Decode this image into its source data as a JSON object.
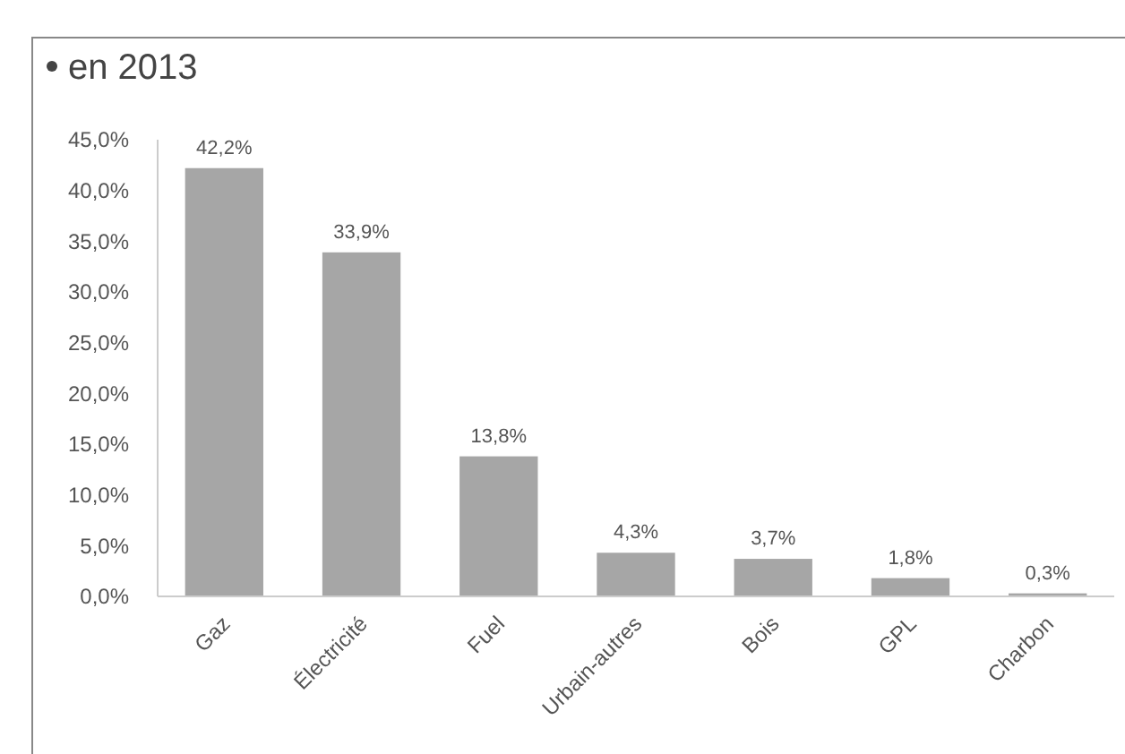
{
  "chart_data": {
    "type": "bar",
    "title": "en 2013",
    "categories": [
      "Gaz",
      "Électricité",
      "Fuel",
      "Urbain-autres",
      "Bois",
      "GPL",
      "Charbon"
    ],
    "values": [
      42.2,
      33.9,
      13.8,
      4.3,
      3.7,
      1.8,
      0.3
    ],
    "value_labels": [
      "42,2%",
      "33,9%",
      "13,8%",
      "4,3%",
      "3,7%",
      "1,8%",
      "0,3%"
    ],
    "color": "#a6a6a6",
    "ylim": [
      0,
      45
    ],
    "yticks": [
      {
        "value": 0,
        "label": "0,0%"
      },
      {
        "value": 5,
        "label": "5,0%"
      },
      {
        "value": 10,
        "label": "10,0%"
      },
      {
        "value": 15,
        "label": "15,0%"
      },
      {
        "value": 20,
        "label": "20,0%"
      },
      {
        "value": 25,
        "label": "25,0%"
      },
      {
        "value": 30,
        "label": "30,0%"
      },
      {
        "value": 35,
        "label": "35,0%"
      },
      {
        "value": 40,
        "label": "40,0%"
      },
      {
        "value": 45,
        "label": "45,0%"
      }
    ],
    "grid": false
  }
}
